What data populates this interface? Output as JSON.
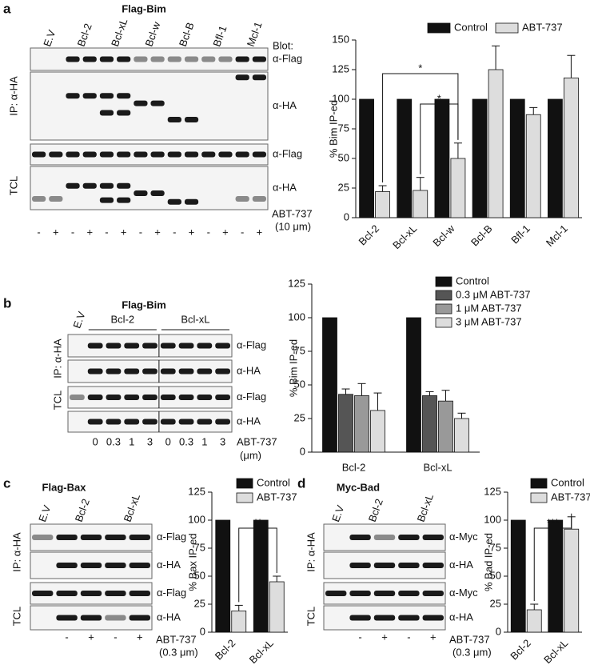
{
  "panels": [
    {
      "letter": "a",
      "title": "Flag-Bim",
      "lanes": [
        "E.V",
        "Bcl-2",
        "Bcl-xL",
        "Bcl-w",
        "Bcl-B",
        "Bfl-1",
        "Mcl-1"
      ],
      "blot_label": "Blot:",
      "antibodies": [
        "α-Flag",
        "α-HA",
        "α-Flag",
        "α-HA"
      ],
      "groups": [
        "IP: α-HA",
        "TCL"
      ],
      "treatment": "ABT-737",
      "treatment_unit": "(10 μm)",
      "conditions": [
        "-",
        "+",
        "-",
        "+",
        "-",
        "+",
        "-",
        "+",
        "-",
        "+",
        "-",
        "+",
        "-",
        "+"
      ]
    },
    {
      "letter": "b",
      "title": "Flag-Bim",
      "lanes": [
        "E.V",
        "Bcl-2",
        "Bcl-xL"
      ],
      "antibodies": [
        "α-Flag",
        "α-HA",
        "α-Flag",
        "α-HA"
      ],
      "groups": [
        "IP: α-HA",
        "TCL"
      ],
      "treatment": "ABT-737",
      "treatment_unit": "(μm)",
      "conditions": [
        "0",
        "0.3",
        "1",
        "3",
        "0",
        "0.3",
        "1",
        "3"
      ]
    },
    {
      "letter": "c",
      "title": "Flag-Bax",
      "lanes": [
        "E.V",
        "Bcl-2",
        "Bcl-xL"
      ],
      "antibodies": [
        "α-Flag",
        "α-HA",
        "α-Flag",
        "α-HA"
      ],
      "groups": [
        "IP: α-HA",
        "TCL"
      ],
      "treatment": "ABT-737",
      "treatment_unit": "(0.3 μm)",
      "conditions": [
        "-",
        "+",
        "-",
        "+"
      ]
    },
    {
      "letter": "d",
      "title": "Myc-Bad",
      "lanes": [
        "E.V",
        "Bcl-2",
        "Bcl-xL"
      ],
      "antibodies": [
        "α-Myc",
        "α-HA",
        "α-Myc",
        "α-HA"
      ],
      "groups": [
        "IP: α-HA",
        "TCL"
      ],
      "treatment": "ABT-737",
      "treatment_unit": "(0.3 μm)",
      "conditions": [
        "-",
        "+",
        "-",
        "+"
      ]
    }
  ],
  "chart_data": [
    {
      "type": "bar",
      "y_label": "% Bim IP-ed",
      "categories": [
        "Bcl-2",
        "Bcl-xL",
        "Bcl-w",
        "Bcl-B",
        "Bfl-1",
        "Mcl-1"
      ],
      "series": [
        {
          "name": "Control",
          "color": "#111111",
          "values": [
            100,
            100,
            100,
            100,
            100,
            100
          ]
        },
        {
          "name": "ABT-737",
          "color": "#dddddd",
          "values": [
            22,
            23,
            50,
            125,
            87,
            118
          ],
          "errors": [
            5,
            11,
            13,
            20,
            6,
            19
          ]
        }
      ],
      "ylim": [
        0,
        150
      ],
      "yticks": [
        0,
        25,
        50,
        75,
        100,
        125,
        150
      ],
      "annotations": [
        "*",
        "*"
      ]
    },
    {
      "type": "bar",
      "y_label": "% Bim IP-ed",
      "categories": [
        "Bcl-2",
        "Bcl-xL"
      ],
      "series": [
        {
          "name": "Control",
          "color": "#111111",
          "values": [
            100,
            100
          ]
        },
        {
          "name": "0.3 μM ABT-737",
          "color": "#555555",
          "values": [
            43,
            42
          ],
          "errors": [
            4,
            3
          ]
        },
        {
          "name": "1 μM ABT-737",
          "color": "#999999",
          "values": [
            42,
            38
          ],
          "errors": [
            9,
            8
          ]
        },
        {
          "name": "3 μM ABT-737",
          "color": "#dddddd",
          "values": [
            31,
            25
          ],
          "errors": [
            13,
            4
          ]
        }
      ],
      "ylim": [
        0,
        125
      ],
      "yticks": [
        0,
        25,
        50,
        75,
        100,
        125
      ]
    },
    {
      "type": "bar",
      "y_label": "% Bax IP-ed",
      "categories": [
        "Bcl-2",
        "Bcl-xL"
      ],
      "series": [
        {
          "name": "Control",
          "color": "#111111",
          "values": [
            100,
            100
          ]
        },
        {
          "name": "ABT-737",
          "color": "#dddddd",
          "values": [
            19,
            45
          ],
          "errors": [
            5,
            5
          ]
        }
      ],
      "ylim": [
        0,
        125
      ],
      "yticks": [
        0,
        25,
        50,
        75,
        100,
        125
      ],
      "annotations": [
        "**"
      ]
    },
    {
      "type": "bar",
      "y_label": "% Bad IP-ed",
      "categories": [
        "Bcl-2",
        "Bcl-xL"
      ],
      "series": [
        {
          "name": "Control",
          "color": "#111111",
          "values": [
            100,
            100
          ]
        },
        {
          "name": "ABT-737",
          "color": "#dddddd",
          "values": [
            20,
            92
          ],
          "errors": [
            5,
            11
          ]
        }
      ],
      "ylim": [
        0,
        125
      ],
      "yticks": [
        0,
        25,
        50,
        75,
        100,
        125
      ],
      "annotations": [
        "***"
      ]
    }
  ]
}
